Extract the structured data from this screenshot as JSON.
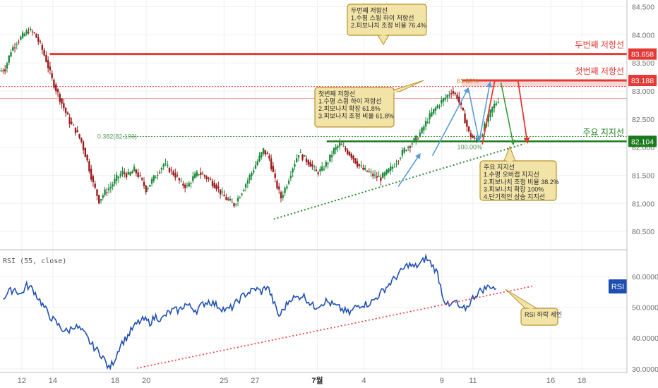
{
  "chart_data": [
    {
      "type": "candlestick",
      "panel": "price",
      "y_axis": {
        "ticks": [
          "84.500",
          "84.000",
          "83.500",
          "83.000",
          "82.500",
          "82.000",
          "81.500",
          "81.000",
          "80.500"
        ],
        "tick_values": [
          84.5,
          84.0,
          83.5,
          83.0,
          82.5,
          82.0,
          81.5,
          81.0,
          80.5
        ],
        "ylim": [
          80.2,
          84.62
        ]
      },
      "x_axis": {
        "ticks": [
          "12",
          "14",
          "18",
          "20",
          "25",
          "27",
          "7월",
          "4",
          "9",
          "11",
          "16",
          "18"
        ],
        "tick_days": [
          0,
          2,
          6,
          8,
          13,
          15,
          19,
          22,
          27,
          29,
          34,
          36
        ],
        "xlim": [
          -1.4,
          38.9
        ]
      },
      "candles_close": [
        83.4,
        83.72,
        83.88,
        83.98,
        84.08,
        84.02,
        83.82,
        83.55,
        83.2,
        82.95,
        82.7,
        82.45,
        82.3,
        82.1,
        81.75,
        81.35,
        81.05,
        81.2,
        81.3,
        81.45,
        81.55,
        81.5,
        81.6,
        81.45,
        81.25,
        81.4,
        81.55,
        81.7,
        81.6,
        81.5,
        81.35,
        81.3,
        81.45,
        81.55,
        81.48,
        81.4,
        81.3,
        81.15,
        81.05,
        80.98,
        81.15,
        81.35,
        81.55,
        81.75,
        81.95,
        81.8,
        81.4,
        81.1,
        81.35,
        81.65,
        81.9,
        81.8,
        81.7,
        81.55,
        81.6,
        81.75,
        81.95,
        82.05,
        81.95,
        81.85,
        81.7,
        81.6,
        81.55,
        81.48,
        81.45,
        81.55,
        81.65,
        81.8,
        81.95,
        82.05,
        82.15,
        82.3,
        82.5,
        82.65,
        82.78,
        82.88,
        83.0,
        82.9,
        82.6,
        82.25,
        82.12,
        82.2,
        82.45,
        82.7,
        82.85
      ],
      "levels": [
        {
          "label": "두번째 저항선",
          "value": "83.658",
          "y": 83.658,
          "color": "#e53935"
        },
        {
          "label": "첫번째 저항선",
          "value": "83.188",
          "y": 83.188,
          "color": "#e53935"
        },
        {
          "label": "주요 지지선",
          "value": "82.104",
          "y": 82.104,
          "color": "#1b7a1b"
        }
      ],
      "reference_lines": [
        {
          "value": 83.658,
          "color": "#e53935",
          "style": "thick"
        },
        {
          "value": 83.08,
          "color": "#e53935",
          "style": "dotted"
        },
        {
          "value": 82.87,
          "color": "#f08080",
          "style": "thin"
        },
        {
          "value": 82.19,
          "color": "#3a9a3a",
          "style": "dotted"
        }
      ],
      "fib_labels": {
        "pct618": "61.80%",
        "pct100": "100.00%",
        "level_0382": "0.382(82.193)"
      },
      "notes": {
        "second_resistance": [
          "두번째 저항선",
          "1.수평 스윙 하이 저항선",
          "2.피보나치 조정 비율 76.4%"
        ],
        "first_resistance": [
          "첫번째 저항선",
          "1.수평 스윙 하이 저항선",
          "2.피보나치 확장 61.8%",
          "3.피보나치 조정 비율 61.8%"
        ],
        "major_support": [
          "주요 지지선",
          "1.수평 오버랩 지지선",
          "2.피보나치 조정 비율 38.2%",
          "3.피보나치 확장 100%",
          "4.단기적인 상승 지지선"
        ]
      },
      "colors": {
        "up_candle": "#1b8a3a",
        "down_candle": "#9b1c1c",
        "arrow": "#5b9bd5",
        "axis_text": "#6b6b6b",
        "grid": "#eef0f3"
      }
    },
    {
      "type": "line",
      "panel": "rsi",
      "series": [
        {
          "name": "RSI (55, close)",
          "color": "#1e4fb0",
          "values": [
            53,
            55,
            56,
            54,
            57,
            56,
            53,
            50,
            47,
            45,
            43,
            42,
            44,
            43,
            41,
            38,
            36,
            34,
            30,
            33,
            38,
            40,
            43,
            45,
            46,
            45,
            47,
            46,
            48,
            49,
            49,
            51,
            50,
            49,
            51,
            52,
            51,
            50,
            49,
            50,
            52,
            54,
            55,
            56,
            55,
            57,
            52,
            47,
            50,
            53,
            53,
            54,
            52,
            50,
            51,
            52,
            51,
            50,
            49,
            48,
            50,
            51,
            51,
            52,
            54,
            56,
            58,
            60,
            62,
            64,
            63,
            64,
            66,
            64,
            61,
            53,
            50,
            52,
            49,
            50,
            53,
            55,
            56,
            57,
            56
          ]
        }
      ],
      "y_axis": {
        "ticks": [
          "60.0000",
          "50.0000",
          "40.0000",
          "30.0000"
        ],
        "tick_values": [
          60,
          50,
          40,
          30
        ],
        "ylim": [
          28.8,
          68
        ]
      },
      "badge": "RSI",
      "trendline": {
        "color": "#e53935",
        "style": "dotted"
      },
      "note": "RSI 하락 세인"
    }
  ]
}
